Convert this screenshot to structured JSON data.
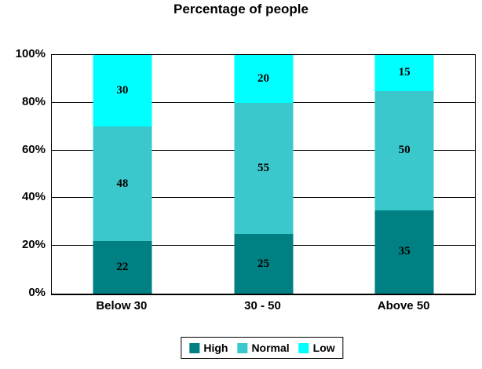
{
  "chart_data": {
    "type": "bar",
    "stacked": true,
    "percent_stacked": true,
    "title": "Percentage of people",
    "xlabel": "",
    "ylabel": "",
    "categories": [
      "Below 30",
      "30 - 50",
      "Above 50"
    ],
    "series": [
      {
        "name": "High",
        "color": "#008083",
        "values": [
          22,
          25,
          35
        ]
      },
      {
        "name": "Normal",
        "color": "#3BC8CC",
        "values": [
          48,
          55,
          50
        ]
      },
      {
        "name": "Low",
        "color": "#00FFFF",
        "values": [
          30,
          20,
          15
        ]
      }
    ],
    "y_ticks": [
      "0%",
      "20%",
      "40%",
      "60%",
      "80%",
      "100%"
    ],
    "ylim": [
      0,
      100
    ],
    "grid": true,
    "legend_position": "bottom",
    "colors": {
      "axis": "#000000",
      "gridline": "#000000",
      "text": "#000000",
      "background": "#ffffff"
    }
  }
}
